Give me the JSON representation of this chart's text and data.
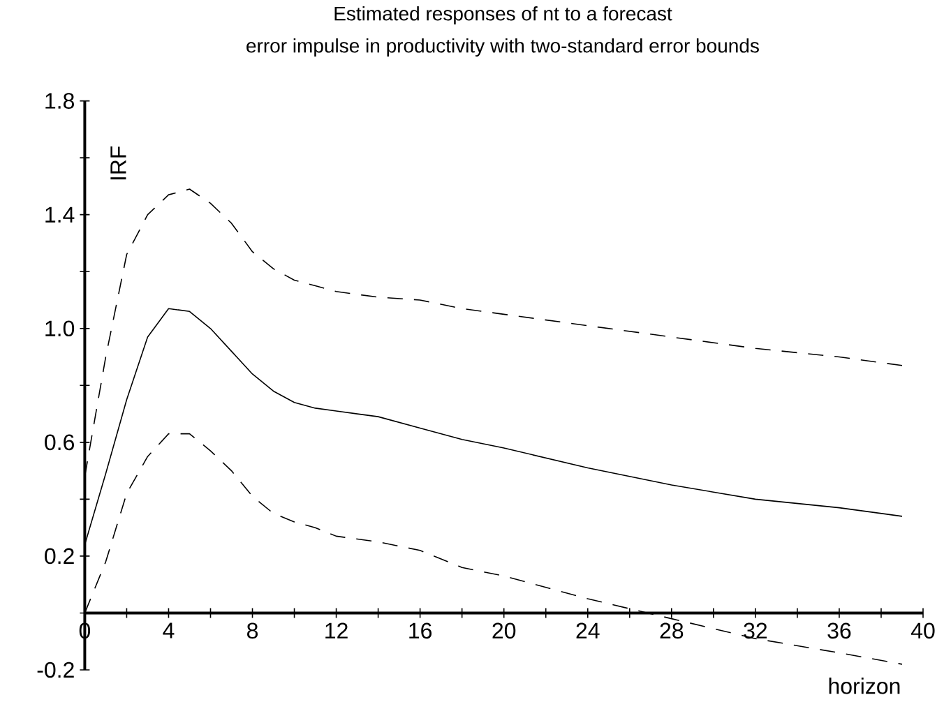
{
  "chart_data": {
    "type": "line",
    "title": "Estimated responses of nt to a forecast",
    "subtitle": "error impulse in productivity with two-standard error bounds",
    "xlabel": "horizon",
    "ylabel": "IRF",
    "x": [
      0,
      1,
      2,
      3,
      4,
      5,
      6,
      7,
      8,
      9,
      10,
      11,
      12,
      14,
      16,
      18,
      20,
      24,
      28,
      32,
      36,
      39
    ],
    "series": [
      {
        "color": "#000000",
        "line_style": "solid",
        "values": [
          0.24,
          0.49,
          0.75,
          0.97,
          1.07,
          1.06,
          1.0,
          0.92,
          0.84,
          0.78,
          0.74,
          0.72,
          0.71,
          0.69,
          0.65,
          0.61,
          0.58,
          0.51,
          0.45,
          0.4,
          0.37,
          0.34
        ]
      },
      {
        "color": "#000000",
        "line_style": "dashed",
        "values": [
          0.48,
          0.9,
          1.26,
          1.4,
          1.47,
          1.49,
          1.44,
          1.37,
          1.27,
          1.21,
          1.17,
          1.15,
          1.13,
          1.11,
          1.1,
          1.07,
          1.05,
          1.01,
          0.97,
          0.93,
          0.9,
          0.87
        ]
      },
      {
        "color": "#000000",
        "line_style": "dashed",
        "values": [
          0.0,
          0.18,
          0.42,
          0.55,
          0.63,
          0.63,
          0.57,
          0.5,
          0.41,
          0.35,
          0.32,
          0.3,
          0.27,
          0.25,
          0.22,
          0.16,
          0.13,
          0.05,
          -0.02,
          -0.09,
          -0.14,
          -0.18
        ]
      }
    ],
    "xlim": [
      0,
      40
    ],
    "ylim": [
      -0.2,
      1.8
    ],
    "xticks": [
      {
        "value": 0,
        "label": "0"
      },
      {
        "value": 2,
        "label": null
      },
      {
        "value": 4,
        "label": "4"
      },
      {
        "value": 6,
        "label": null
      },
      {
        "value": 8,
        "label": "8"
      },
      {
        "value": 10,
        "label": null
      },
      {
        "value": 12,
        "label": "12"
      },
      {
        "value": 14,
        "label": null
      },
      {
        "value": 16,
        "label": "16"
      },
      {
        "value": 18,
        "label": null
      },
      {
        "value": 20,
        "label": "20"
      },
      {
        "value": 22,
        "label": null
      },
      {
        "value": 24,
        "label": "24"
      },
      {
        "value": 26,
        "label": null
      },
      {
        "value": 28,
        "label": "28"
      },
      {
        "value": 30,
        "label": null
      },
      {
        "value": 32,
        "label": "32"
      },
      {
        "value": 34,
        "label": null
      },
      {
        "value": 36,
        "label": "36"
      },
      {
        "value": 38,
        "label": null
      },
      {
        "value": 40,
        "label": "40"
      }
    ],
    "yticks": [
      {
        "value": -0.2,
        "label": "-0.2"
      },
      {
        "value": 0,
        "label": null
      },
      {
        "value": 0.2,
        "label": "0.2"
      },
      {
        "value": 0.4,
        "label": null
      },
      {
        "value": 0.6,
        "label": "0.6"
      },
      {
        "value": 0.8,
        "label": null
      },
      {
        "value": 1.0,
        "label": "1.0"
      },
      {
        "value": 1.2,
        "label": null
      },
      {
        "value": 1.4,
        "label": "1.4"
      },
      {
        "value": 1.6,
        "label": null
      },
      {
        "value": 1.8,
        "label": "1.8"
      }
    ],
    "grid": false,
    "legend": false,
    "marker": "none"
  }
}
